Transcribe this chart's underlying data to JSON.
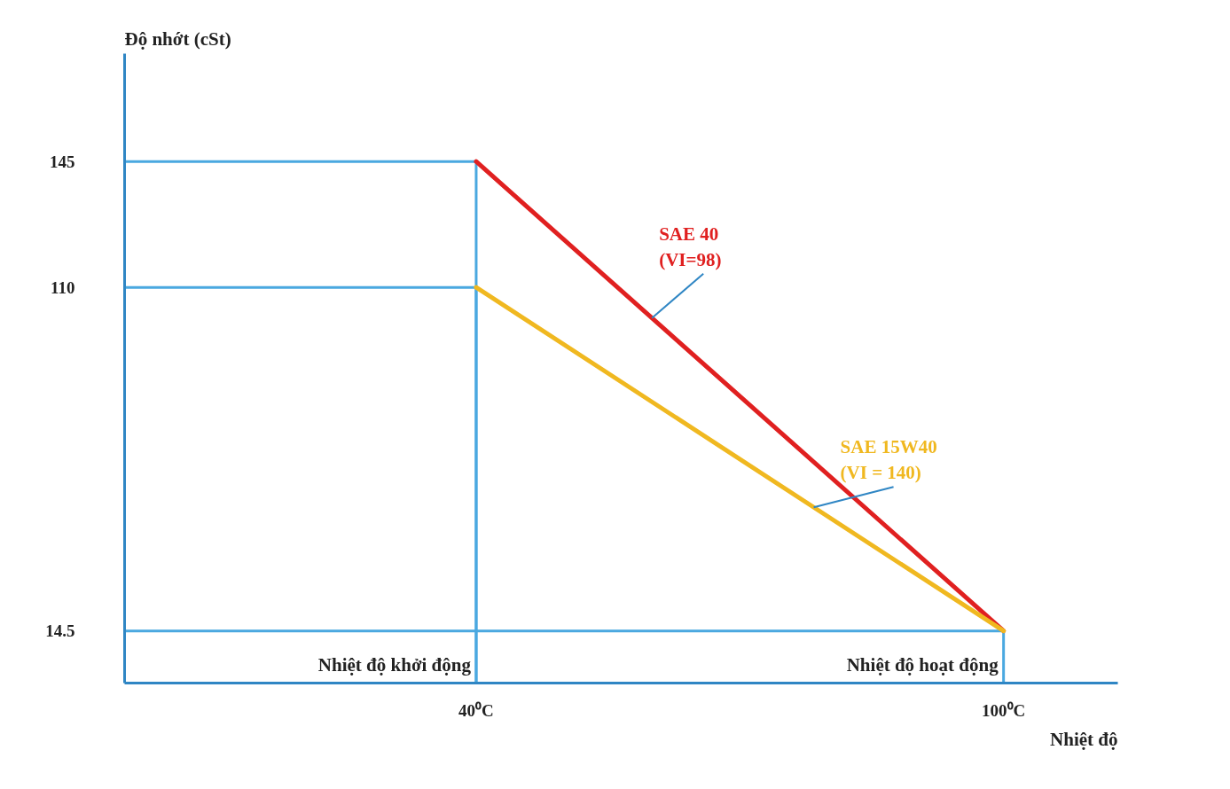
{
  "chart_data": {
    "type": "line",
    "xlabel": "Nhiệt độ",
    "ylabel": "Độ nhớt (cSt)",
    "xlim": [
      0,
      113
    ],
    "ylim": [
      0,
      175
    ],
    "xticks": [
      {
        "value": 40,
        "label": "40⁰C"
      },
      {
        "value": 100,
        "label": "100⁰C"
      }
    ],
    "yticks": [
      145,
      110,
      14.5
    ],
    "grid": false,
    "line_style": "solid",
    "annotations": [
      {
        "text": "Nhiệt độ khởi động",
        "x": 40,
        "y": 2
      },
      {
        "text": "Nhiệt độ hoạt động",
        "x": 100,
        "y": 2
      }
    ],
    "series": [
      {
        "color": "#4aa8e0",
        "x": [
          0,
          40,
          40
        ],
        "values": [
          145,
          145,
          0
        ]
      },
      {
        "color": "#4aa8e0",
        "x": [
          0,
          40,
          40
        ],
        "values": [
          110,
          110,
          0
        ]
      },
      {
        "color": "#4aa8e0",
        "x": [
          0,
          100,
          100
        ],
        "values": [
          14.5,
          14.5,
          0
        ]
      },
      {
        "name": "SAE 40\n(VI=98)",
        "color": "#e02020",
        "x": [
          40,
          100
        ],
        "values": [
          145,
          14.5
        ]
      },
      {
        "name": "SAE 15W40\n(VI = 140)",
        "color": "#f0b820",
        "x": [
          40,
          100
        ],
        "values": [
          110,
          14.5
        ]
      }
    ]
  }
}
